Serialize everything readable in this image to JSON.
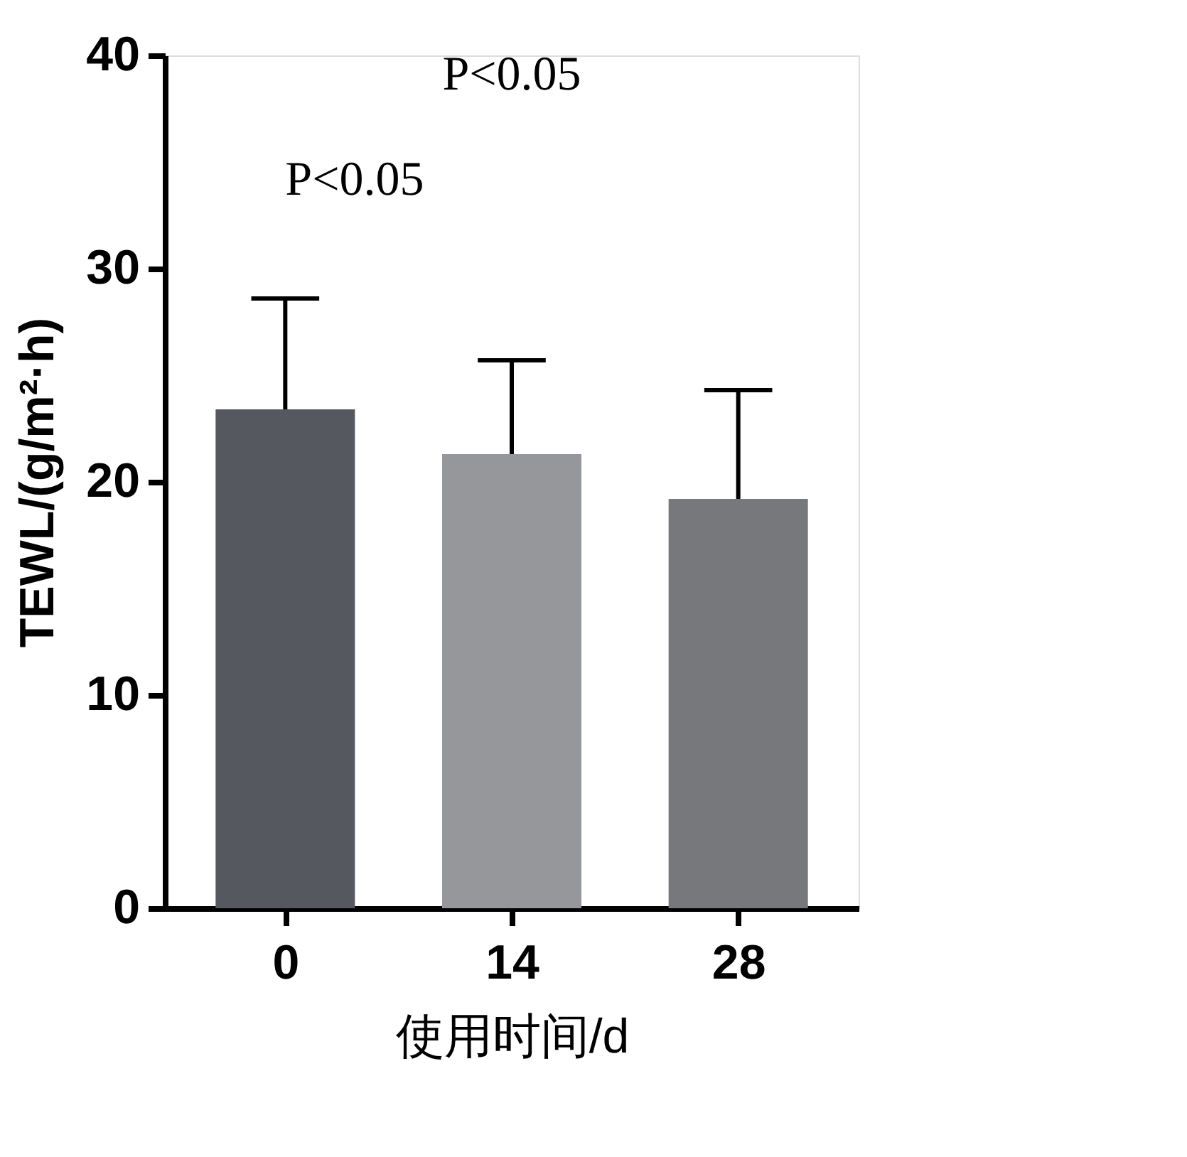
{
  "chart_data": {
    "type": "bar",
    "xlabel": "使用时间/d",
    "ylabel": "TEWL/(g/m²·h)",
    "categories": [
      "0",
      "14",
      "28"
    ],
    "values": [
      23.4,
      21.3,
      19.2
    ],
    "colors": [
      "#55585e",
      "#96979b",
      "#77787c"
    ],
    "errors": [
      5.2,
      4.4,
      5.1
    ],
    "ylim": [
      0,
      40
    ],
    "yticks": [
      0,
      10,
      20,
      30,
      40
    ],
    "grid": false,
    "annotations": [
      "P<0.05",
      "P<0.05"
    ]
  }
}
